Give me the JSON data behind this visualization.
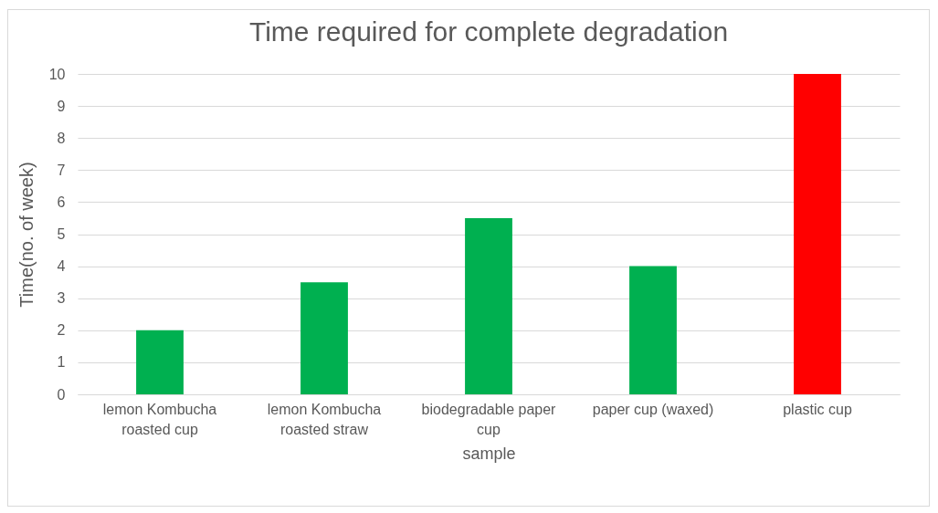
{
  "chart_data": {
    "type": "bar",
    "title": "Time required for complete degradation",
    "xlabel": "sample",
    "ylabel": "Time(no. of week)",
    "categories": [
      "lemon Kombucha roasted cup",
      "lemon Kombucha roasted straw",
      "biodegradable paper cup",
      "paper cup (waxed)",
      "plastic cup"
    ],
    "values": [
      2,
      3.5,
      5.5,
      4,
      10
    ],
    "colors": [
      "#00b050",
      "#00b050",
      "#00b050",
      "#00b050",
      "#ff0000"
    ],
    "ylim": [
      0,
      10
    ],
    "yticks": [
      0,
      1,
      2,
      3,
      4,
      5,
      6,
      7,
      8,
      9,
      10
    ],
    "grid": "y"
  }
}
